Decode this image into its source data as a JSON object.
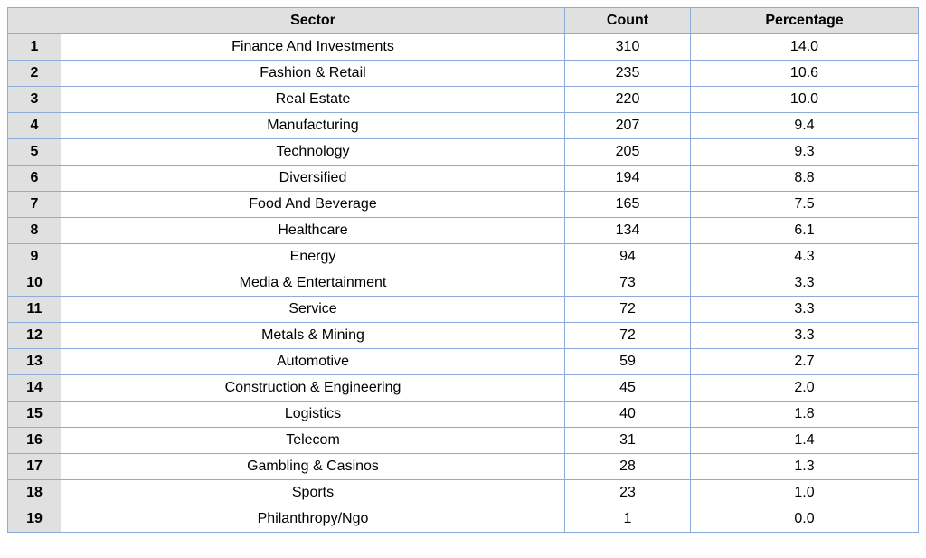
{
  "table": {
    "columns": [
      "",
      "Sector",
      "Count",
      "Percentage"
    ],
    "rows": [
      {
        "index": "1",
        "sector": "Finance And Investments",
        "count": "310",
        "percentage": "14.0"
      },
      {
        "index": "2",
        "sector": "Fashion & Retail",
        "count": "235",
        "percentage": "10.6"
      },
      {
        "index": "3",
        "sector": "Real Estate",
        "count": "220",
        "percentage": "10.0"
      },
      {
        "index": "4",
        "sector": "Manufacturing",
        "count": "207",
        "percentage": "9.4"
      },
      {
        "index": "5",
        "sector": "Technology",
        "count": "205",
        "percentage": "9.3"
      },
      {
        "index": "6",
        "sector": "Diversified",
        "count": "194",
        "percentage": "8.8"
      },
      {
        "index": "7",
        "sector": "Food And Beverage",
        "count": "165",
        "percentage": "7.5"
      },
      {
        "index": "8",
        "sector": "Healthcare",
        "count": "134",
        "percentage": "6.1"
      },
      {
        "index": "9",
        "sector": "Energy",
        "count": "94",
        "percentage": "4.3"
      },
      {
        "index": "10",
        "sector": "Media & Entertainment",
        "count": "73",
        "percentage": "3.3"
      },
      {
        "index": "11",
        "sector": "Service",
        "count": "72",
        "percentage": "3.3"
      },
      {
        "index": "12",
        "sector": "Metals & Mining",
        "count": "72",
        "percentage": "3.3"
      },
      {
        "index": "13",
        "sector": "Automotive",
        "count": "59",
        "percentage": "2.7"
      },
      {
        "index": "14",
        "sector": "Construction & Engineering",
        "count": "45",
        "percentage": "2.0"
      },
      {
        "index": "15",
        "sector": "Logistics",
        "count": "40",
        "percentage": "1.8"
      },
      {
        "index": "16",
        "sector": "Telecom",
        "count": "31",
        "percentage": "1.4"
      },
      {
        "index": "17",
        "sector": "Gambling & Casinos",
        "count": "28",
        "percentage": "1.3"
      },
      {
        "index": "18",
        "sector": "Sports",
        "count": "23",
        "percentage": "1.0"
      },
      {
        "index": "19",
        "sector": "Philanthropy/Ngo",
        "count": "1",
        "percentage": "0.0"
      }
    ]
  },
  "colors": {
    "border": "#8eaadb",
    "header_bg": "#e0e0e0",
    "cell_bg": "#ffffff"
  }
}
